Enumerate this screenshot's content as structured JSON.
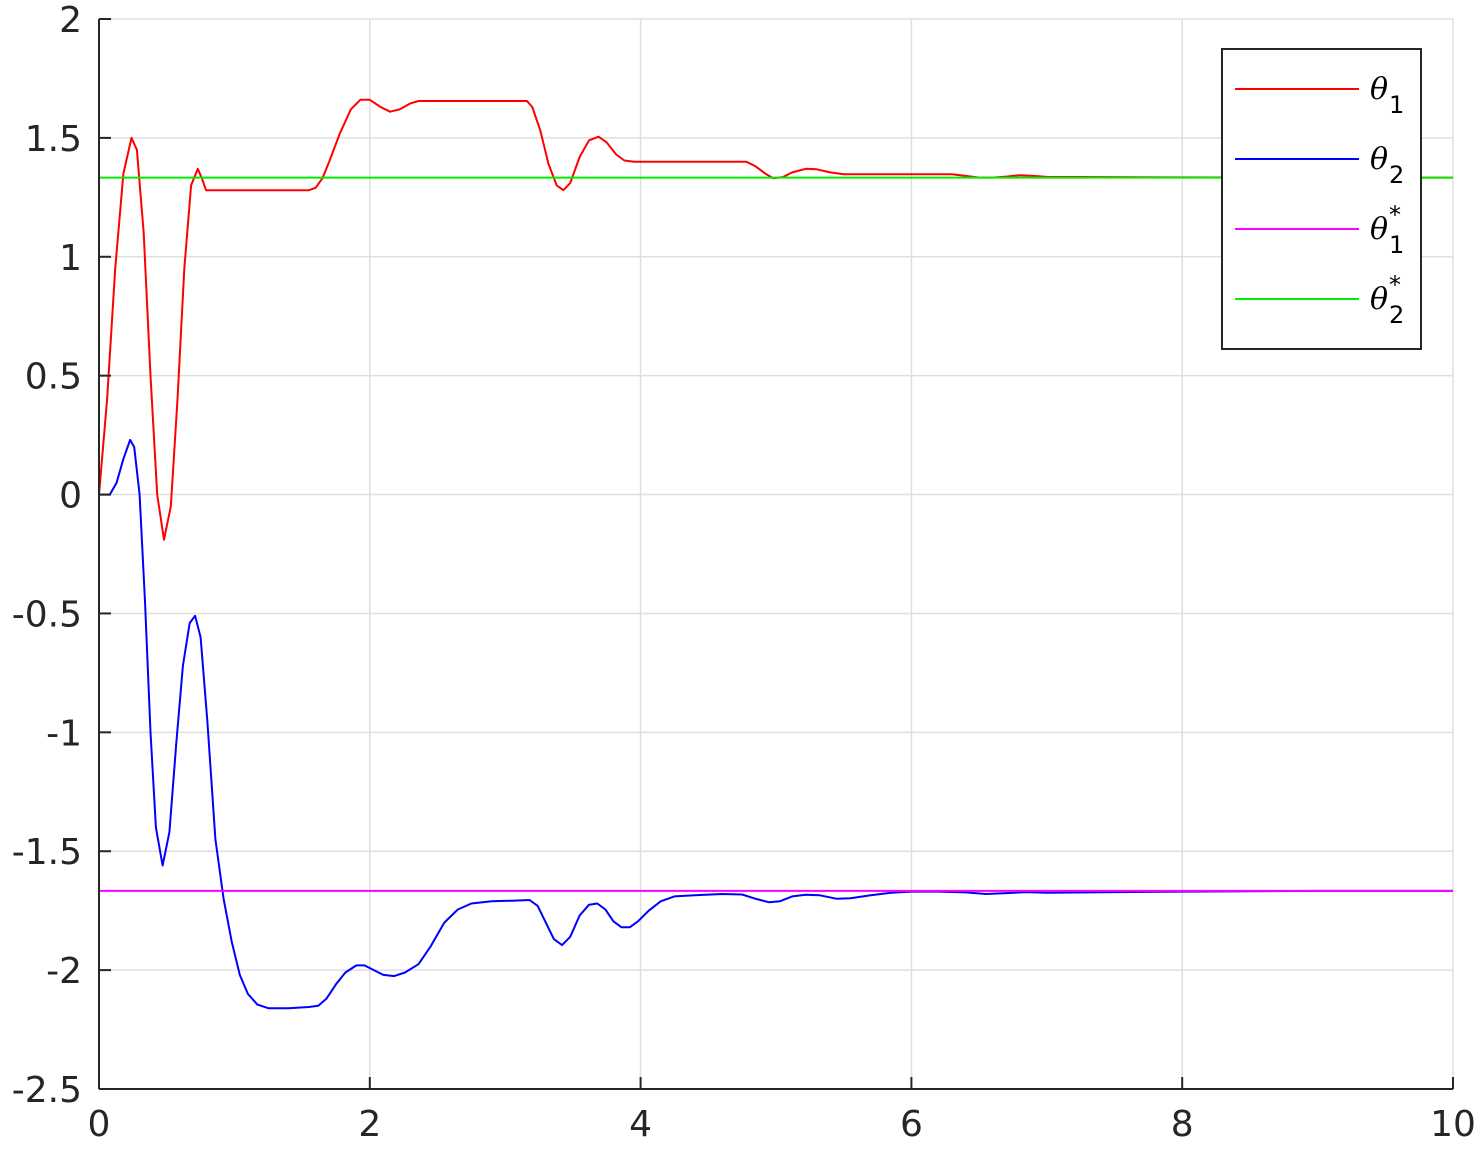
{
  "chart_data": {
    "type": "line",
    "title": "",
    "xlabel": "",
    "ylabel": "",
    "xlim": [
      0,
      10
    ],
    "ylim": [
      -2.5,
      2
    ],
    "grid": true,
    "legend_position": "top-right",
    "xticks": [
      0,
      2,
      4,
      6,
      8,
      10
    ],
    "yticks": [
      2,
      1.5,
      1,
      0.5,
      0,
      -0.5,
      -1,
      -1.5,
      -2,
      -2.5
    ],
    "xtick_labels": [
      "0",
      "2",
      "4",
      "6",
      "8",
      "10"
    ],
    "ytick_labels": [
      "2",
      "1.5",
      "1",
      "0.5",
      "0",
      "-0.5",
      "-1",
      "-1.5",
      "-2",
      "-2.5"
    ],
    "series": [
      {
        "name": "θ1",
        "legend_symbol": "θ",
        "legend_sub": "1",
        "legend_sup": "",
        "color": "#ff0000",
        "points": [
          [
            0,
            0
          ],
          [
            0.06,
            0.4
          ],
          [
            0.12,
            0.95
          ],
          [
            0.18,
            1.35
          ],
          [
            0.24,
            1.5
          ],
          [
            0.28,
            1.45
          ],
          [
            0.33,
            1.1
          ],
          [
            0.38,
            0.5
          ],
          [
            0.43,
            0.0
          ],
          [
            0.48,
            -0.19
          ],
          [
            0.53,
            -0.05
          ],
          [
            0.58,
            0.4
          ],
          [
            0.63,
            0.95
          ],
          [
            0.68,
            1.3
          ],
          [
            0.73,
            1.37
          ],
          [
            0.76,
            1.33
          ],
          [
            0.79,
            1.28
          ],
          [
            0.85,
            1.28
          ],
          [
            1.2,
            1.28
          ],
          [
            1.55,
            1.28
          ],
          [
            1.6,
            1.29
          ],
          [
            1.65,
            1.33
          ],
          [
            1.7,
            1.4
          ],
          [
            1.78,
            1.52
          ],
          [
            1.86,
            1.62
          ],
          [
            1.93,
            1.66
          ],
          [
            2.0,
            1.66
          ],
          [
            2.08,
            1.63
          ],
          [
            2.15,
            1.61
          ],
          [
            2.22,
            1.62
          ],
          [
            2.3,
            1.645
          ],
          [
            2.36,
            1.655
          ],
          [
            2.5,
            1.655
          ],
          [
            2.8,
            1.655
          ],
          [
            3.1,
            1.655
          ],
          [
            3.16,
            1.655
          ],
          [
            3.2,
            1.63
          ],
          [
            3.26,
            1.53
          ],
          [
            3.32,
            1.39
          ],
          [
            3.38,
            1.3
          ],
          [
            3.43,
            1.28
          ],
          [
            3.48,
            1.31
          ],
          [
            3.55,
            1.42
          ],
          [
            3.62,
            1.49
          ],
          [
            3.69,
            1.505
          ],
          [
            3.75,
            1.48
          ],
          [
            3.82,
            1.43
          ],
          [
            3.88,
            1.405
          ],
          [
            3.95,
            1.4
          ],
          [
            4.2,
            1.4
          ],
          [
            4.5,
            1.4
          ],
          [
            4.73,
            1.4
          ],
          [
            4.78,
            1.4
          ],
          [
            4.85,
            1.38
          ],
          [
            4.92,
            1.35
          ],
          [
            4.98,
            1.33
          ],
          [
            5.05,
            1.335
          ],
          [
            5.12,
            1.355
          ],
          [
            5.22,
            1.37
          ],
          [
            5.3,
            1.368
          ],
          [
            5.4,
            1.355
          ],
          [
            5.5,
            1.347
          ],
          [
            5.7,
            1.347
          ],
          [
            6.0,
            1.347
          ],
          [
            6.3,
            1.347
          ],
          [
            6.4,
            1.34
          ],
          [
            6.5,
            1.333
          ],
          [
            6.6,
            1.333
          ],
          [
            6.7,
            1.337
          ],
          [
            6.8,
            1.343
          ],
          [
            6.9,
            1.34
          ],
          [
            7.0,
            1.336
          ],
          [
            7.5,
            1.335
          ],
          [
            8.0,
            1.334
          ],
          [
            9.0,
            1.333
          ],
          [
            10.0,
            1.333
          ]
        ]
      },
      {
        "name": "θ2",
        "legend_symbol": "θ",
        "legend_sub": "2",
        "legend_sup": "",
        "color": "#0000ff",
        "points": [
          [
            0,
            0
          ],
          [
            0.08,
            0.0
          ],
          [
            0.13,
            0.05
          ],
          [
            0.18,
            0.15
          ],
          [
            0.23,
            0.23
          ],
          [
            0.26,
            0.2
          ],
          [
            0.3,
            0.0
          ],
          [
            0.34,
            -0.45
          ],
          [
            0.38,
            -1.0
          ],
          [
            0.42,
            -1.4
          ],
          [
            0.47,
            -1.56
          ],
          [
            0.52,
            -1.42
          ],
          [
            0.57,
            -1.05
          ],
          [
            0.62,
            -0.72
          ],
          [
            0.67,
            -0.54
          ],
          [
            0.71,
            -0.51
          ],
          [
            0.75,
            -0.6
          ],
          [
            0.8,
            -0.95
          ],
          [
            0.86,
            -1.45
          ],
          [
            0.92,
            -1.7
          ],
          [
            0.98,
            -1.88
          ],
          [
            1.04,
            -2.02
          ],
          [
            1.1,
            -2.1
          ],
          [
            1.17,
            -2.145
          ],
          [
            1.25,
            -2.16
          ],
          [
            1.4,
            -2.16
          ],
          [
            1.55,
            -2.155
          ],
          [
            1.62,
            -2.15
          ],
          [
            1.68,
            -2.12
          ],
          [
            1.75,
            -2.06
          ],
          [
            1.82,
            -2.01
          ],
          [
            1.9,
            -1.98
          ],
          [
            1.96,
            -1.98
          ],
          [
            2.03,
            -2.0
          ],
          [
            2.1,
            -2.02
          ],
          [
            2.18,
            -2.025
          ],
          [
            2.26,
            -2.01
          ],
          [
            2.36,
            -1.975
          ],
          [
            2.45,
            -1.9
          ],
          [
            2.55,
            -1.8
          ],
          [
            2.65,
            -1.745
          ],
          [
            2.75,
            -1.72
          ],
          [
            2.9,
            -1.71
          ],
          [
            3.05,
            -1.708
          ],
          [
            3.18,
            -1.705
          ],
          [
            3.24,
            -1.73
          ],
          [
            3.3,
            -1.8
          ],
          [
            3.36,
            -1.87
          ],
          [
            3.42,
            -1.895
          ],
          [
            3.48,
            -1.86
          ],
          [
            3.55,
            -1.77
          ],
          [
            3.62,
            -1.725
          ],
          [
            3.68,
            -1.72
          ],
          [
            3.74,
            -1.745
          ],
          [
            3.8,
            -1.795
          ],
          [
            3.86,
            -1.82
          ],
          [
            3.92,
            -1.82
          ],
          [
            3.98,
            -1.795
          ],
          [
            4.06,
            -1.75
          ],
          [
            4.15,
            -1.71
          ],
          [
            4.25,
            -1.69
          ],
          [
            4.4,
            -1.685
          ],
          [
            4.6,
            -1.68
          ],
          [
            4.75,
            -1.682
          ],
          [
            4.85,
            -1.7
          ],
          [
            4.95,
            -1.715
          ],
          [
            5.03,
            -1.71
          ],
          [
            5.12,
            -1.69
          ],
          [
            5.22,
            -1.683
          ],
          [
            5.32,
            -1.685
          ],
          [
            5.45,
            -1.7
          ],
          [
            5.55,
            -1.698
          ],
          [
            5.7,
            -1.685
          ],
          [
            5.85,
            -1.675
          ],
          [
            6.0,
            -1.67
          ],
          [
            6.2,
            -1.67
          ],
          [
            6.4,
            -1.673
          ],
          [
            6.55,
            -1.68
          ],
          [
            6.7,
            -1.676
          ],
          [
            6.85,
            -1.672
          ],
          [
            7.0,
            -1.675
          ],
          [
            7.5,
            -1.672
          ],
          [
            8.0,
            -1.67
          ],
          [
            9.0,
            -1.667
          ],
          [
            10.0,
            -1.667
          ]
        ]
      },
      {
        "name": "θ1*",
        "legend_symbol": "θ",
        "legend_sub": "1",
        "legend_sup": "*",
        "color": "#ff00ff",
        "points": [
          [
            0,
            -1.667
          ],
          [
            10,
            -1.667
          ]
        ]
      },
      {
        "name": "θ2*",
        "legend_symbol": "θ",
        "legend_sub": "2",
        "legend_sup": "*",
        "color": "#00ee00",
        "points": [
          [
            0,
            1.333
          ],
          [
            10,
            1.333
          ]
        ]
      }
    ]
  }
}
